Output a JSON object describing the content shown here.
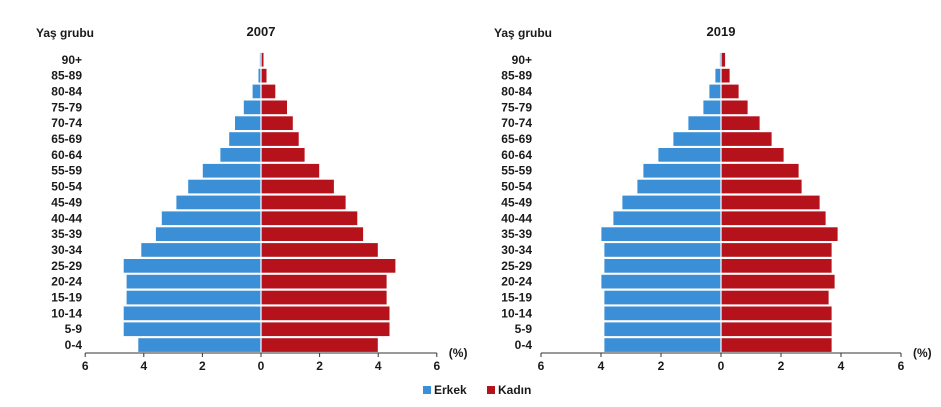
{
  "legend": {
    "erkek": "Erkek",
    "kadin": "Kadın"
  },
  "colors": {
    "erkek": "#3a8fd6",
    "kadin": "#b5121b"
  },
  "chart_data": [
    {
      "type": "bar",
      "orientation": "horizontal-population-pyramid",
      "title": "2007",
      "ylabel": "Yaş grubu",
      "xlabel": "(%)",
      "xlim": [
        -6,
        6
      ],
      "x_ticks": [
        "6",
        "4",
        "2",
        "0",
        "2",
        "4",
        "6"
      ],
      "categories": [
        "0-4",
        "5-9",
        "10-14",
        "15-19",
        "20-24",
        "25-29",
        "30-34",
        "35-39",
        "40-44",
        "45-49",
        "50-54",
        "55-59",
        "60-64",
        "65-69",
        "70-74",
        "75-79",
        "80-84",
        "85-89",
        "90+"
      ],
      "series": [
        {
          "name": "Erkek",
          "values": [
            4.2,
            4.7,
            4.7,
            4.6,
            4.6,
            4.7,
            4.1,
            3.6,
            3.4,
            2.9,
            2.5,
            2.0,
            1.4,
            1.1,
            0.9,
            0.6,
            0.3,
            0.1,
            0.05
          ]
        },
        {
          "name": "Kadın",
          "values": [
            4.0,
            4.4,
            4.4,
            4.3,
            4.3,
            4.6,
            4.0,
            3.5,
            3.3,
            2.9,
            2.5,
            2.0,
            1.5,
            1.3,
            1.1,
            0.9,
            0.5,
            0.2,
            0.1
          ]
        }
      ],
      "legend_position": "bottom"
    },
    {
      "type": "bar",
      "orientation": "horizontal-population-pyramid",
      "title": "2019",
      "ylabel": "Yaş grubu",
      "xlabel": "(%)",
      "xlim": [
        -6,
        6
      ],
      "x_ticks": [
        "6",
        "4",
        "2",
        "0",
        "2",
        "4",
        "6"
      ],
      "categories": [
        "0-4",
        "5-9",
        "10-14",
        "15-19",
        "20-24",
        "25-29",
        "30-34",
        "35-39",
        "40-44",
        "45-49",
        "50-54",
        "55-59",
        "60-64",
        "65-69",
        "70-74",
        "75-79",
        "80-84",
        "85-89",
        "90+"
      ],
      "series": [
        {
          "name": "Erkek",
          "values": [
            3.9,
            3.9,
            3.9,
            3.9,
            4.0,
            3.9,
            3.9,
            4.0,
            3.6,
            3.3,
            2.8,
            2.6,
            2.1,
            1.6,
            1.1,
            0.6,
            0.4,
            0.2,
            0.05
          ]
        },
        {
          "name": "Kadın",
          "values": [
            3.7,
            3.7,
            3.7,
            3.6,
            3.8,
            3.7,
            3.7,
            3.9,
            3.5,
            3.3,
            2.7,
            2.6,
            2.1,
            1.7,
            1.3,
            0.9,
            0.6,
            0.3,
            0.15
          ]
        }
      ],
      "legend_position": "bottom"
    }
  ]
}
